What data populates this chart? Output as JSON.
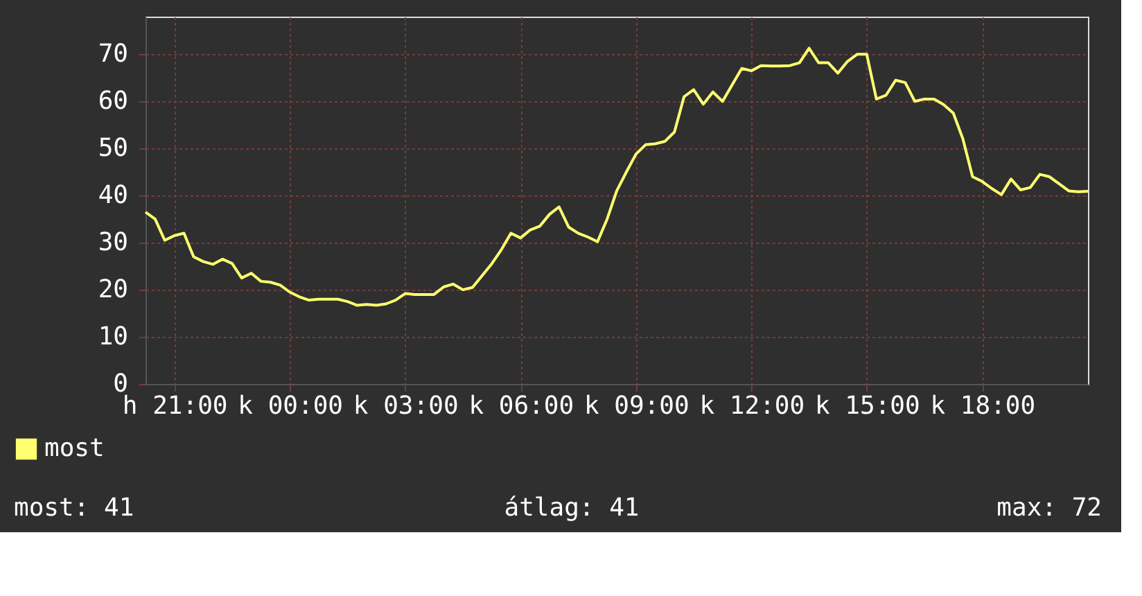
{
  "chart_data": {
    "type": "line",
    "categories": [
      null,
      null,
      null,
      "h 21:00",
      null,
      null,
      null,
      null,
      null,
      null,
      null,
      null,
      null,
      null,
      null,
      "k 00:00",
      null,
      null,
      null,
      null,
      null,
      null,
      null,
      null,
      null,
      null,
      null,
      "k 03:00",
      null,
      null,
      null,
      null,
      null,
      null,
      null,
      null,
      null,
      null,
      null,
      "k 06:00",
      null,
      null,
      null,
      null,
      null,
      null,
      null,
      null,
      null,
      null,
      null,
      "k 09:00",
      null,
      null,
      null,
      null,
      null,
      null,
      null,
      null,
      null,
      null,
      null,
      "k 12:00",
      null,
      null,
      null,
      null,
      null,
      null,
      null,
      null,
      null,
      null,
      null,
      "k 15:00",
      null,
      null,
      null,
      null,
      null,
      null,
      null,
      null,
      null,
      null,
      null,
      "k 18:00",
      null,
      null,
      null,
      null,
      null,
      null,
      null,
      null,
      null,
      null,
      null
    ],
    "series": [
      {
        "name": "most",
        "color": "#ffff70",
        "values": [
          36.5,
          35,
          30.5,
          31.5,
          32,
          27,
          26,
          25.4,
          26.5,
          25.6,
          22.5,
          23.5,
          21.8,
          21.6,
          21,
          19.5,
          18.5,
          17.8,
          18,
          18,
          18,
          17.5,
          16.7,
          16.9,
          16.7,
          17,
          17.8,
          19.2,
          19,
          19,
          19,
          20.6,
          21.2,
          20,
          20.5,
          23,
          25.5,
          28.5,
          32,
          31,
          32.7,
          33.5,
          36,
          37.6,
          33.3,
          32,
          31.2,
          30.2,
          35,
          41,
          45,
          48.8,
          50.8,
          51,
          51.5,
          53.5,
          61,
          62.5,
          59.4,
          62,
          60,
          63.5,
          67,
          66.5,
          67.6,
          67.5,
          67.5,
          67.6,
          68.2,
          71.3,
          68.2,
          68.2,
          66,
          68.5,
          70,
          70,
          60.5,
          61.3,
          64.5,
          64,
          60,
          60.5,
          60.5,
          59.3,
          57.5,
          52,
          44,
          43,
          41.5,
          40.2,
          43.5,
          41.2,
          41.7,
          44.5,
          44,
          42.5,
          41,
          40.8,
          40.9
        ]
      }
    ],
    "ylim": [
      0,
      78
    ],
    "yticks": [
      0,
      10,
      20,
      30,
      40,
      50,
      60,
      70
    ],
    "grid": true,
    "legend": "bottom left",
    "line_style": "solid",
    "annotations": [
      "most: 41",
      "átlag: 41",
      "max: 72"
    ]
  }
}
